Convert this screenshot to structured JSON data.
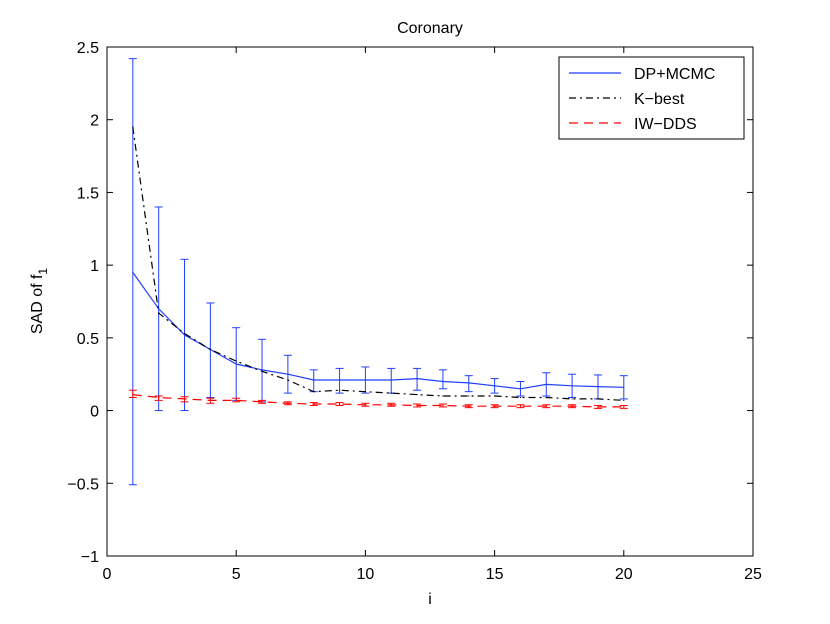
{
  "chart_data": {
    "type": "line",
    "title": "Coronary",
    "xlabel": "i",
    "ylabel_main": "SAD of f",
    "ylabel_sub": "1",
    "xlim": [
      0,
      25
    ],
    "ylim": [
      -1,
      2.5
    ],
    "xticks": [
      0,
      5,
      10,
      15,
      20,
      25
    ],
    "yticks": [
      -1,
      -0.5,
      0,
      0.5,
      1,
      1.5,
      2,
      2.5
    ],
    "xtick_labels": [
      "0",
      "5",
      "10",
      "15",
      "20",
      "25"
    ],
    "ytick_labels": [
      "−1",
      "−0.5",
      "0",
      "0.5",
      "1",
      "1.5",
      "2",
      "2.5"
    ],
    "grid": false,
    "legend_position": "top-right",
    "x": [
      1,
      2,
      3,
      4,
      5,
      6,
      7,
      8,
      9,
      10,
      11,
      12,
      13,
      14,
      15,
      16,
      17,
      18,
      19,
      20
    ],
    "series": [
      {
        "name": "DP+MCMC",
        "color": "#1f3fff",
        "style": "solid",
        "values": [
          0.95,
          0.7,
          0.52,
          0.42,
          0.32,
          0.28,
          0.25,
          0.21,
          0.21,
          0.21,
          0.21,
          0.22,
          0.2,
          0.19,
          0.17,
          0.15,
          0.18,
          0.17,
          0.165,
          0.16
        ],
        "error_low": [
          -0.51,
          0.0,
          0.0,
          0.09,
          0.07,
          0.06,
          0.12,
          0.13,
          0.12,
          0.12,
          0.12,
          0.14,
          0.15,
          0.13,
          0.12,
          0.1,
          0.1,
          0.09,
          0.08,
          0.08
        ],
        "error_high": [
          2.42,
          1.4,
          1.04,
          0.74,
          0.57,
          0.49,
          0.38,
          0.28,
          0.29,
          0.3,
          0.29,
          0.29,
          0.28,
          0.24,
          0.22,
          0.2,
          0.26,
          0.25,
          0.245,
          0.24
        ]
      },
      {
        "name": "K−best",
        "color": "#000000",
        "style": "dashdot",
        "values": [
          1.95,
          0.67,
          0.53,
          0.42,
          0.34,
          0.27,
          0.21,
          0.13,
          0.14,
          0.13,
          0.12,
          0.11,
          0.1,
          0.1,
          0.1,
          0.09,
          0.09,
          0.08,
          0.08,
          0.07
        ]
      },
      {
        "name": "IW−DDS",
        "color": "#ff0000",
        "style": "dashed",
        "values": [
          0.11,
          0.09,
          0.08,
          0.07,
          0.07,
          0.06,
          0.05,
          0.045,
          0.045,
          0.04,
          0.04,
          0.035,
          0.035,
          0.03,
          0.03,
          0.03,
          0.03,
          0.03,
          0.025,
          0.025
        ],
        "error_low": [
          0.09,
          0.07,
          0.06,
          0.05,
          0.06,
          0.05,
          0.04,
          0.035,
          0.035,
          0.03,
          0.03,
          0.025,
          0.025,
          0.02,
          0.02,
          0.02,
          0.02,
          0.02,
          0.015,
          0.015
        ],
        "error_high": [
          0.14,
          0.1,
          0.095,
          0.085,
          0.085,
          0.07,
          0.06,
          0.055,
          0.055,
          0.05,
          0.05,
          0.045,
          0.045,
          0.04,
          0.04,
          0.04,
          0.04,
          0.04,
          0.035,
          0.035
        ]
      }
    ]
  }
}
